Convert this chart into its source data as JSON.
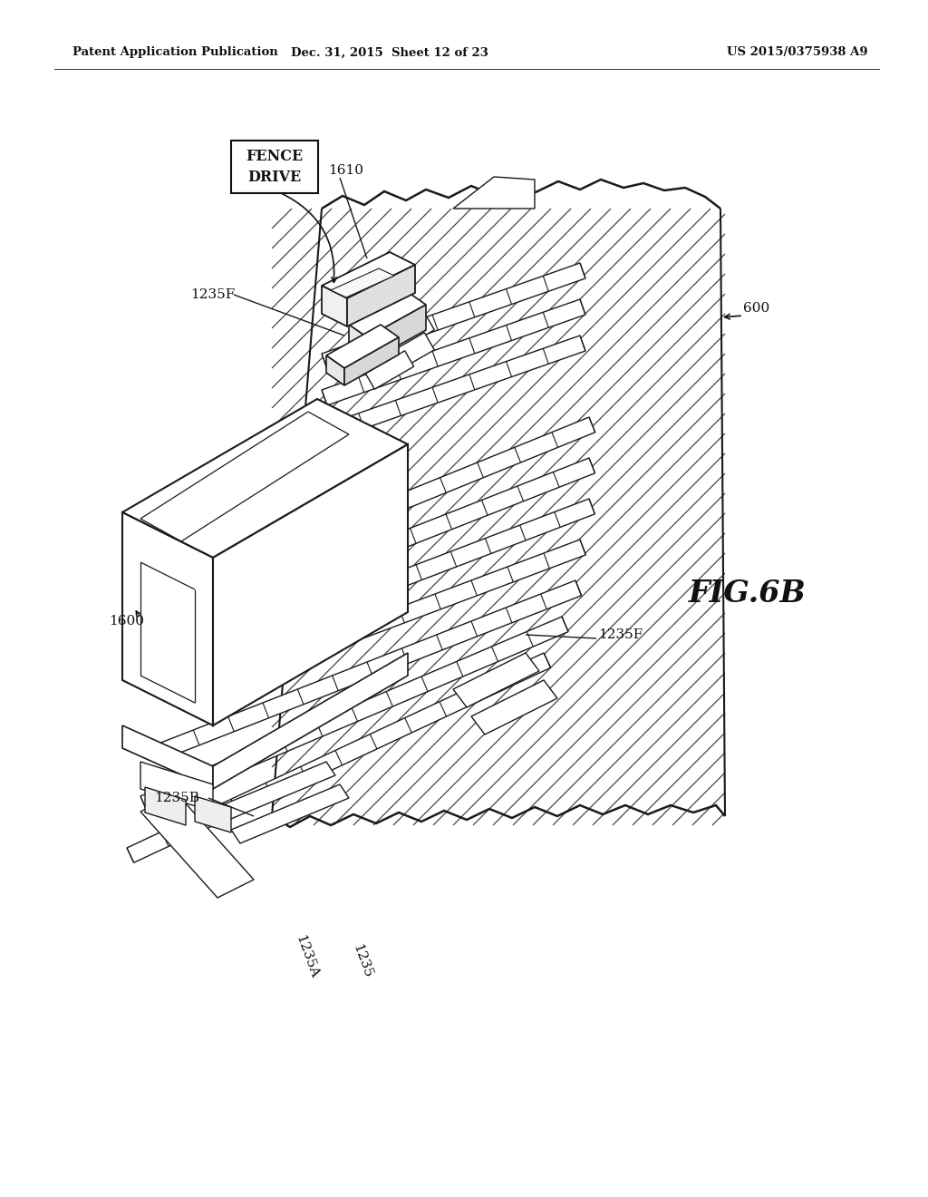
{
  "bg_color": "#ffffff",
  "header_left": "Patent Application Publication",
  "header_mid": "Dec. 31, 2015  Sheet 12 of 23",
  "header_right": "US 2015/0375938 A9",
  "fig_label": "FIG.6B",
  "line_color": "#1a1a1a",
  "labels": {
    "fence_drive_box": "FENCE\nDRIVE",
    "l1610": "1610",
    "l1235F_top": "1235F",
    "l600": "600",
    "l1600": "1600",
    "l1235F_bot": "1235F",
    "l1235B": "1235B",
    "l1235A": "1235A",
    "l1235": "1235"
  }
}
